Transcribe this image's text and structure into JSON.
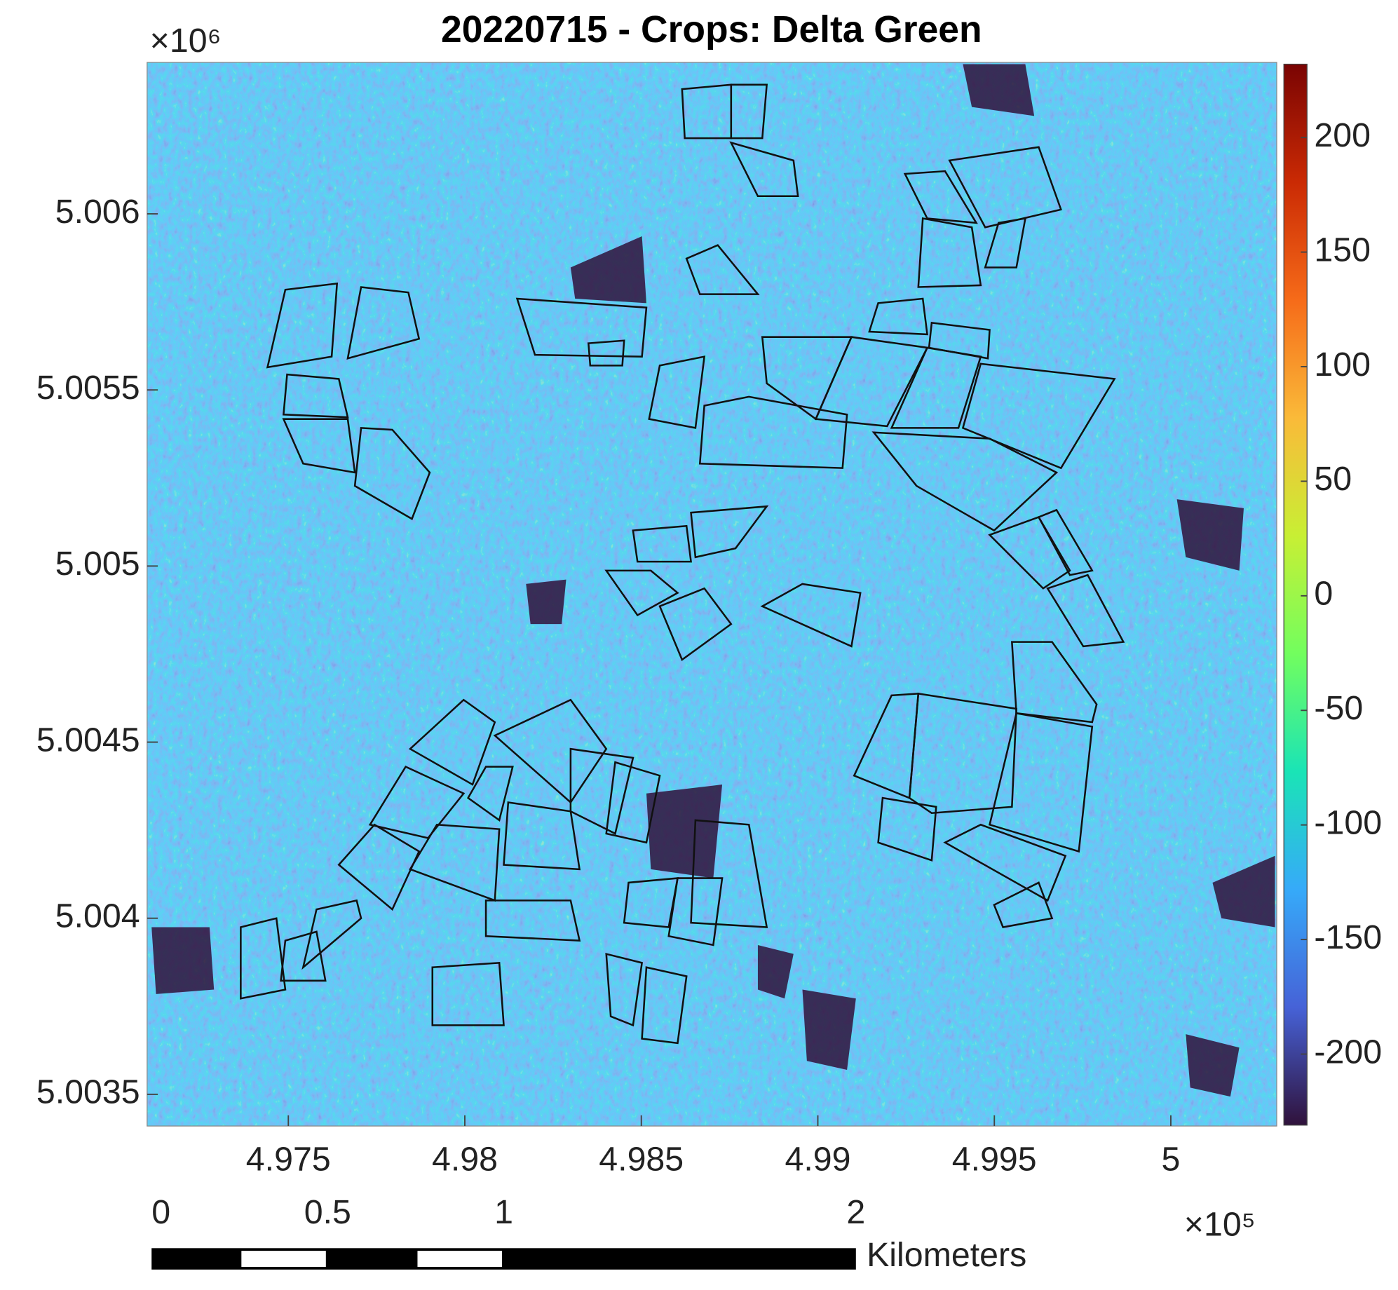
{
  "chart_data": {
    "type": "heatmap",
    "title": "20220715 - Crops: Delta Green",
    "xlim": [
      4.971,
      5.003
    ],
    "xticks": [
      4.975,
      4.98,
      4.985,
      4.99,
      4.995,
      5
    ],
    "x_exponent": "×10⁵",
    "ylim": [
      5.00341,
      5.00643
    ],
    "yticks": [
      5.0035,
      5.004,
      5.0045,
      5.005,
      5.0055,
      5.006
    ],
    "y_exponent": "×10⁶",
    "colorbar": {
      "clim": [
        -231,
        232
      ],
      "ticks": [
        -200,
        -150,
        -100,
        -50,
        0,
        50,
        100,
        150,
        200
      ],
      "colormap": [
        "#30123b",
        "#4662d7",
        "#36aaf9",
        "#1ae4b6",
        "#72fe5e",
        "#c8ef34",
        "#faba39",
        "#f66b19",
        "#ca2a04",
        "#7a0403"
      ]
    },
    "scale_bar": {
      "ticks": [
        0,
        0.5,
        1,
        2
      ],
      "unit": "Kilometers"
    }
  }
}
